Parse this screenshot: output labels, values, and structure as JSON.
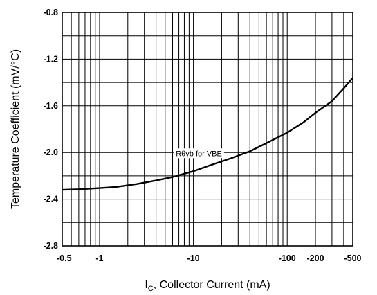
{
  "chart_data": {
    "type": "line",
    "xlabel": {
      "main": "I",
      "sub": "C",
      "rest": ", Collector Current (mA)"
    },
    "ylabel": "Temperature Coefficient (mV/°C)",
    "x_scale": "log",
    "xlim": [
      0.4,
      500
    ],
    "ylim": [
      -2.8,
      -0.8
    ],
    "x_ticks": [
      {
        "value": 0.5,
        "label": "-0.5"
      },
      {
        "value": 1,
        "label": "-1"
      },
      {
        "value": 10,
        "label": "-10"
      },
      {
        "value": 100,
        "label": "-100"
      },
      {
        "value": 200,
        "label": "-200"
      },
      {
        "value": 500,
        "label": "-500"
      }
    ],
    "y_ticks": [
      {
        "value": -0.8,
        "label": "-0.8"
      },
      {
        "value": -1.2,
        "label": "-1.2"
      },
      {
        "value": -1.6,
        "label": "-1.6"
      },
      {
        "value": -2.0,
        "label": "-2.0"
      },
      {
        "value": -2.4,
        "label": "-2.4"
      },
      {
        "value": -2.8,
        "label": "-2.8"
      }
    ],
    "grid": true,
    "series": [
      {
        "x": [
          0.4,
          0.6,
          1,
          1.5,
          2.5,
          4,
          6,
          10,
          15,
          25,
          40,
          60,
          100,
          150,
          200,
          300,
          400,
          500
        ],
        "y": [
          -2.32,
          -2.315,
          -2.305,
          -2.295,
          -2.27,
          -2.24,
          -2.21,
          -2.16,
          -2.11,
          -2.05,
          -1.99,
          -1.92,
          -1.83,
          -1.74,
          -1.66,
          -1.56,
          -1.45,
          -1.36
        ]
      }
    ],
    "annotations": [
      {
        "text": "Rθvb for VBE",
        "x": 6.5,
        "y": -2.03
      }
    ],
    "line_color": "#000000",
    "grid_color": "#000000"
  }
}
